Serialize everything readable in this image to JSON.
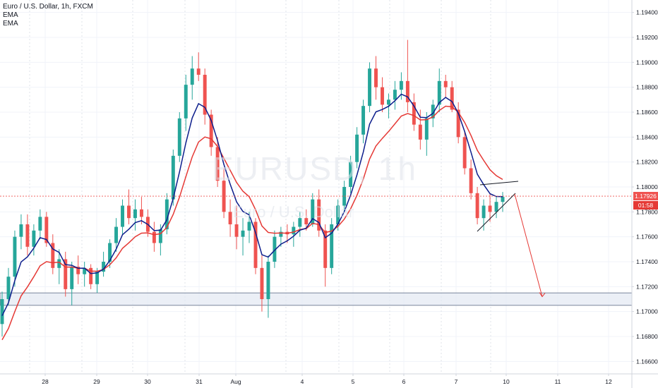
{
  "chart_data": {
    "type": "candlestick",
    "title": "Euro / U.S. Dollar, 1h, FXCM",
    "watermark": "EURUSD, 1h",
    "watermark_sub": "Euro / U.S. Dollar",
    "indicators": [
      {
        "name": "EMA",
        "color": "#0d1e8c"
      },
      {
        "name": "EMA",
        "color": "#e53935"
      }
    ],
    "y_axis": {
      "min": 1.165,
      "max": 1.195,
      "ticks": [
        "1.19400",
        "1.19200",
        "1.19000",
        "1.18800",
        "1.18600",
        "1.18400",
        "1.18200",
        "1.18000",
        "1.17800",
        "1.17600",
        "1.17400",
        "1.17200",
        "1.17000",
        "1.16800",
        "1.16600"
      ]
    },
    "x_axis": {
      "ticks": [
        "28",
        "29",
        "30",
        "31",
        "Aug",
        "4",
        "5",
        "6",
        "7",
        "10",
        "11",
        "12"
      ]
    },
    "current_price": "1.17926",
    "countdown": "01:58",
    "colors": {
      "up": "#26a69a",
      "down": "#ef5350",
      "ema_fast": "#0d1e8c",
      "ema_slow": "#e53935",
      "price_tag": "#ef5350",
      "countdown_tag": "#e53935",
      "zone_fill": "#e3e8f2",
      "zone_border": "#5d6b85"
    },
    "support_zone": [
      1.1705,
      1.1715
    ],
    "projection_target": 1.1712,
    "candles": [
      [
        1.169,
        1.1716,
        1.168,
        1.171
      ],
      [
        1.171,
        1.1735,
        1.1705,
        1.1728
      ],
      [
        1.1728,
        1.1765,
        1.172,
        1.176
      ],
      [
        1.176,
        1.1778,
        1.175,
        1.177
      ],
      [
        1.177,
        1.1778,
        1.1745,
        1.1752
      ],
      [
        1.1752,
        1.177,
        1.1745,
        1.1765
      ],
      [
        1.1765,
        1.1782,
        1.1758,
        1.1776
      ],
      [
        1.1776,
        1.178,
        1.1752,
        1.1755
      ],
      [
        1.1755,
        1.1762,
        1.173,
        1.1735
      ],
      [
        1.1735,
        1.175,
        1.1722,
        1.1742
      ],
      [
        1.1742,
        1.1748,
        1.1712,
        1.1718
      ],
      [
        1.1718,
        1.174,
        1.1705,
        1.1736
      ],
      [
        1.1736,
        1.1745,
        1.1722,
        1.173
      ],
      [
        1.173,
        1.174,
        1.172,
        1.1735
      ],
      [
        1.1735,
        1.1738,
        1.1718,
        1.1722
      ],
      [
        1.1722,
        1.1735,
        1.1715,
        1.1732
      ],
      [
        1.1732,
        1.1748,
        1.1728,
        1.174
      ],
      [
        1.174,
        1.1758,
        1.1735,
        1.1755
      ],
      [
        1.1755,
        1.1775,
        1.1748,
        1.1768
      ],
      [
        1.1768,
        1.179,
        1.1762,
        1.1785
      ],
      [
        1.1785,
        1.1798,
        1.177,
        1.1775
      ],
      [
        1.1775,
        1.179,
        1.1765,
        1.1782
      ],
      [
        1.1782,
        1.1792,
        1.177,
        1.1776
      ],
      [
        1.1776,
        1.1782,
        1.176,
        1.1764
      ],
      [
        1.1764,
        1.1772,
        1.1748,
        1.1755
      ],
      [
        1.1755,
        1.177,
        1.1745,
        1.1766
      ],
      [
        1.1766,
        1.1795,
        1.1762,
        1.179
      ],
      [
        1.179,
        1.183,
        1.1785,
        1.1825
      ],
      [
        1.1825,
        1.186,
        1.182,
        1.1855
      ],
      [
        1.1855,
        1.189,
        1.1845,
        1.1882
      ],
      [
        1.1882,
        1.1905,
        1.187,
        1.1895
      ],
      [
        1.1895,
        1.1908,
        1.1885,
        1.189
      ],
      [
        1.189,
        1.1895,
        1.185,
        1.1858
      ],
      [
        1.1858,
        1.1862,
        1.1825,
        1.1832
      ],
      [
        1.1832,
        1.184,
        1.18,
        1.1805
      ],
      [
        1.1805,
        1.1815,
        1.1775,
        1.178
      ],
      [
        1.178,
        1.179,
        1.176,
        1.177
      ],
      [
        1.177,
        1.1785,
        1.175,
        1.176
      ],
      [
        1.176,
        1.1775,
        1.1745,
        1.1765
      ],
      [
        1.1765,
        1.178,
        1.1755,
        1.1772
      ],
      [
        1.1772,
        1.1775,
        1.173,
        1.1735
      ],
      [
        1.1735,
        1.1745,
        1.17,
        1.171
      ],
      [
        1.171,
        1.1745,
        1.1695,
        1.174
      ],
      [
        1.174,
        1.1765,
        1.1735,
        1.176
      ],
      [
        1.176,
        1.1768,
        1.1752,
        1.1764
      ],
      [
        1.1764,
        1.177,
        1.1755,
        1.1762
      ],
      [
        1.1762,
        1.1772,
        1.1752,
        1.1768
      ],
      [
        1.1768,
        1.178,
        1.176,
        1.1775
      ],
      [
        1.1775,
        1.1782,
        1.1765,
        1.177
      ],
      [
        1.177,
        1.1795,
        1.1768,
        1.179
      ],
      [
        1.179,
        1.1798,
        1.176,
        1.1765
      ],
      [
        1.1765,
        1.177,
        1.172,
        1.1735
      ],
      [
        1.1735,
        1.1775,
        1.173,
        1.177
      ],
      [
        1.177,
        1.179,
        1.1765,
        1.1785
      ],
      [
        1.1785,
        1.1805,
        1.178,
        1.18
      ],
      [
        1.18,
        1.1825,
        1.1795,
        1.182
      ],
      [
        1.182,
        1.1848,
        1.1815,
        1.1842
      ],
      [
        1.1842,
        1.187,
        1.1835,
        1.1865
      ],
      [
        1.1865,
        1.19,
        1.186,
        1.1895
      ],
      [
        1.1895,
        1.1905,
        1.187,
        1.188
      ],
      [
        1.188,
        1.1888,
        1.186,
        1.1866
      ],
      [
        1.1866,
        1.1875,
        1.1855,
        1.187
      ],
      [
        1.187,
        1.1885,
        1.1862,
        1.1878
      ],
      [
        1.1878,
        1.1892,
        1.187,
        1.1885
      ],
      [
        1.1885,
        1.1918,
        1.186,
        1.1868
      ],
      [
        1.1868,
        1.1875,
        1.1845,
        1.185
      ],
      [
        1.185,
        1.1862,
        1.183,
        1.1838
      ],
      [
        1.1838,
        1.186,
        1.1825,
        1.1855
      ],
      [
        1.1855,
        1.187,
        1.1848,
        1.1866
      ],
      [
        1.1866,
        1.1895,
        1.186,
        1.1885
      ],
      [
        1.1885,
        1.189,
        1.1872,
        1.188
      ],
      [
        1.188,
        1.1885,
        1.186,
        1.1862
      ],
      [
        1.1862,
        1.1868,
        1.1835,
        1.184
      ],
      [
        1.184,
        1.1845,
        1.181,
        1.1815
      ],
      [
        1.1815,
        1.1822,
        1.179,
        1.1795
      ],
      [
        1.1795,
        1.18,
        1.177,
        1.1775
      ],
      [
        1.1775,
        1.179,
        1.1765,
        1.1785
      ],
      [
        1.1785,
        1.1795,
        1.1772,
        1.178
      ],
      [
        1.178,
        1.1792,
        1.1775,
        1.1788
      ],
      [
        1.1788,
        1.1796,
        1.178,
        1.1792
      ]
    ]
  },
  "ui": {
    "legend_title": "Euro / U.S. Dollar, 1h, FXCM",
    "legend_ema1": "EMA",
    "legend_ema2": "EMA"
  }
}
